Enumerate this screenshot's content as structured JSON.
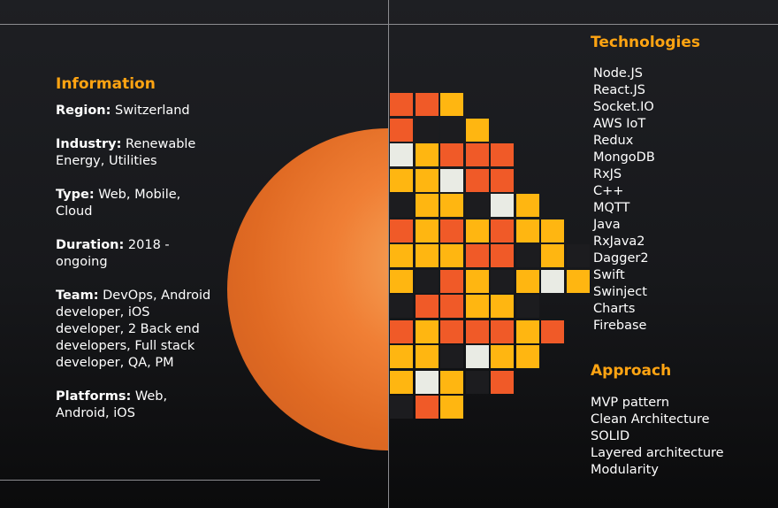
{
  "colors": {
    "accent": "#ffa412",
    "orange": "#f05a28",
    "amber": "#ffb611",
    "offwhite": "#e9ebe4",
    "dark": "#1c1c1f"
  },
  "information": {
    "title": "Information",
    "items": [
      {
        "label": "Region:",
        "value": " Switzerland"
      },
      {
        "label": "Industry:",
        "value": " Renewable Energy, Utilities"
      },
      {
        "label": "Type:",
        "value": " Web, Mobile, Cloud"
      },
      {
        "label": "Duration:",
        "value": " 2018 - ongoing"
      },
      {
        "label": "Team:",
        "value": " DevOps, Android developer, iOS developer, 2 Back end developers, Full stack developer, QA, PM"
      },
      {
        "label": "Platforms:",
        "value": " Web, Android, iOS"
      }
    ]
  },
  "technologies": {
    "title": "Technologies",
    "items": [
      "Node.JS",
      "React.JS",
      "Socket.IO",
      "AWS IoT",
      "Redux",
      "MongoDB",
      "RxJS",
      "C++",
      "MQTT",
      "Java",
      "RxJava2",
      "Dagger2",
      "Swift",
      "Swinject",
      "Charts",
      "Firebase"
    ]
  },
  "approach": {
    "title": "Approach",
    "items": [
      "MVP pattern",
      "Clean Architecture",
      "SOLID",
      "Layered architecture",
      "Modularity"
    ]
  },
  "pixel_art": {
    "rows": [
      "OOY",
      "ODDY",
      "WYOOO",
      "YYWOO",
      "DYYDWY",
      "OYOYOYY",
      "YYYOODYD",
      "YDOYDYWY",
      "DOOYYD",
      "OYOOOYO",
      "YYDWYY",
      "YWYDO",
      "DOY"
    ]
  }
}
